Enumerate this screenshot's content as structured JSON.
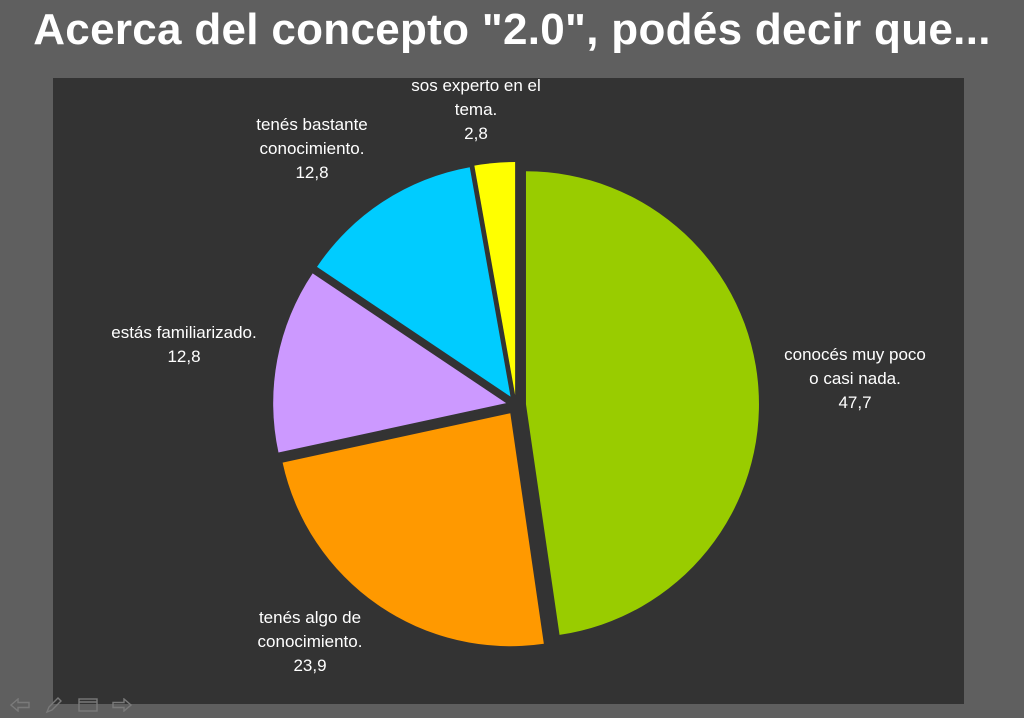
{
  "slide": {
    "title": "Acerca del concepto \"2.0\", podés decir que..."
  },
  "chart_data": {
    "type": "pie",
    "exploded": true,
    "start": "12 o'clock, clockwise",
    "slices": [
      {
        "label_lines": [
          "conocés muy poco",
          "o casi nada."
        ],
        "value_text": "47,7",
        "value": 47.7,
        "color": "#99cc00"
      },
      {
        "label_lines": [
          "tenés algo de",
          "conocimiento."
        ],
        "value_text": "23,9",
        "value": 23.9,
        "color": "#ff9900"
      },
      {
        "label_lines": [
          "estás familiarizado."
        ],
        "value_text": "12,8",
        "value": 12.8,
        "color": "#cc99ff"
      },
      {
        "label_lines": [
          "tenés bastante",
          "conocimiento."
        ],
        "value_text": "12,8",
        "value": 12.8,
        "color": "#00ccff"
      },
      {
        "label_lines": [
          "sos experto en el",
          "tema."
        ],
        "value_text": "2,8",
        "value": 2.8,
        "color": "#ffff00"
      }
    ],
    "background": "#333333"
  },
  "nav": {
    "buttons": [
      {
        "name": "previous-slide-icon"
      },
      {
        "name": "pen-icon"
      },
      {
        "name": "slide-menu-icon"
      },
      {
        "name": "next-slide-icon"
      }
    ]
  }
}
